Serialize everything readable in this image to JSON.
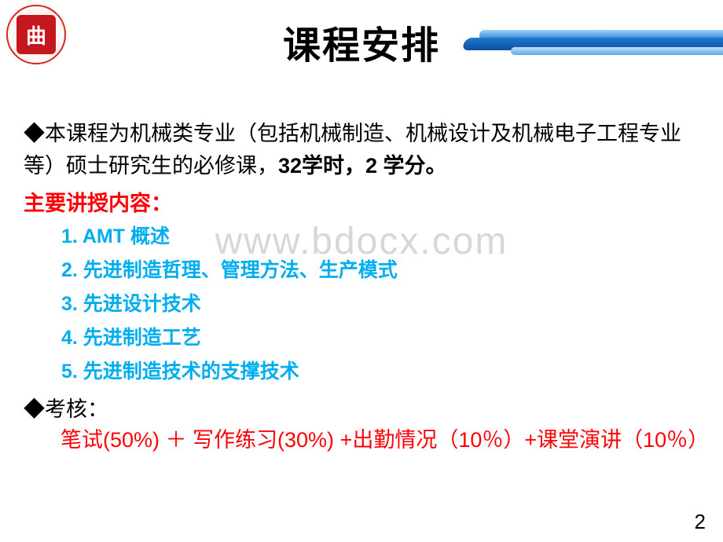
{
  "colors": {
    "background": "#ffffff",
    "title_text": "#000000",
    "body_text": "#000000",
    "red_text": "#fc0207",
    "topic_text": "#00aef0",
    "watermark": "#d7d7d7",
    "logo_border": "#d8261f",
    "logo_fill": "#c5171e",
    "ribbon_light": "#9fd3f7",
    "ribbon_mid": "#1e78d0",
    "ribbon_dark": "#0a4fa0"
  },
  "typography": {
    "title_fontsize": 48,
    "body_fontsize": 27,
    "topic_fontsize": 25,
    "watermark_fontsize": 48,
    "page_num_fontsize": 26
  },
  "logo_glyph": "曲",
  "title": "课程安排",
  "watermark": "www.bdocx.com",
  "intro_pre": "◆本课程为机械类专业（包括机械制造、机械设计及机械电子工程专业等）硕士研究生的必修课，",
  "intro_bold": "32学时，2 学分。",
  "section_label": "主要讲授内容：",
  "topics": [
    "1. AMT 概述",
    "2. 先进制造哲理、管理方法、生产模式",
    "3. 先进设计技术",
    "4. 先进制造工艺",
    "5. 先进制造技术的支撑技术"
  ],
  "assess_label": "◆考核：",
  "assess_body": "　笔试(50%) ＋ 写作练习(30%) +出勤情况（10％）+课堂演讲（10％）",
  "page_number": "2"
}
